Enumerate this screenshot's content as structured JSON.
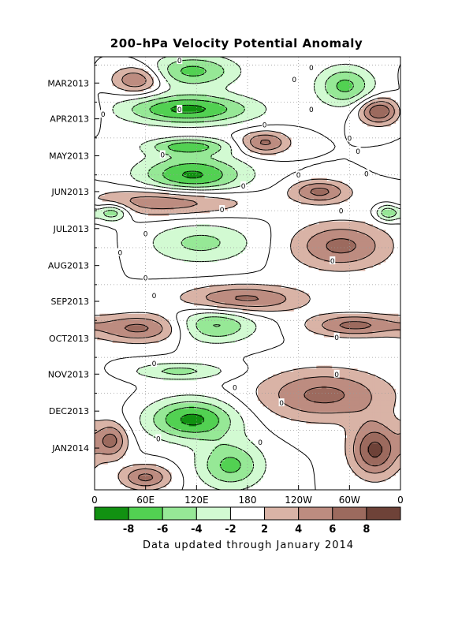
{
  "title": "200–hPa Velocity Potential Anomaly",
  "footer": "Data updated through January 2014",
  "chart_data": {
    "type": "heatmap",
    "title": "200–hPa Velocity Potential Anomaly",
    "x_ticks": [
      "0",
      "60E",
      "120E",
      "180",
      "120W",
      "60W",
      "0"
    ],
    "x_tick_lon": [
      0,
      60,
      120,
      180,
      240,
      300,
      360
    ],
    "y_ticks": [
      "MAR2013",
      "APR2013",
      "MAY2013",
      "JUN2013",
      "JUL2013",
      "AUG2013",
      "SEP2013",
      "OCT2013",
      "NOV2013",
      "DEC2013",
      "JAN2014"
    ],
    "y_range": [
      "2013-02-22",
      "2014-02-20"
    ],
    "x_range": [
      0,
      360
    ],
    "grid": true,
    "contour_labels_value": "0",
    "colorbar": {
      "labels": [
        "-8",
        "-6",
        "-4",
        "-2",
        "2",
        "4",
        "6",
        "8"
      ],
      "colors": [
        "#119111",
        "#52d152",
        "#96e896",
        "#d2fad2",
        "#ffffff",
        "#d9b3a6",
        "#bd8c80",
        "#9c6a5e",
        "#6e4238"
      ]
    },
    "regions": [
      {
        "sign": "negative",
        "lon": [
          30,
          190
        ],
        "date": [
          "2013-03-25",
          "2013-04-20"
        ],
        "min": -8
      },
      {
        "sign": "negative",
        "lon": [
          60,
          170
        ],
        "date": [
          "2013-02-20",
          "2013-03-20"
        ],
        "min": -6
      },
      {
        "sign": "negative",
        "lon": [
          60,
          160
        ],
        "date": [
          "2013-05-01",
          "2013-05-15"
        ],
        "min": -6
      },
      {
        "sign": "negative",
        "lon": [
          50,
          180
        ],
        "date": [
          "2013-05-15",
          "2013-06-20"
        ],
        "min": -8
      },
      {
        "sign": "negative",
        "lon": [
          0,
          40
        ],
        "date": [
          "2013-06-25",
          "2013-07-10"
        ],
        "min": -6
      },
      {
        "sign": "negative",
        "lon": [
          330,
          360
        ],
        "date": [
          "2013-06-25",
          "2013-07-10"
        ],
        "min": -6
      },
      {
        "sign": "negative",
        "lon": [
          60,
          190
        ],
        "date": [
          "2013-07-10",
          "2013-08-15"
        ],
        "min": -4
      },
      {
        "sign": "negative",
        "lon": [
          90,
          190
        ],
        "date": [
          "2013-09-20",
          "2013-10-20"
        ],
        "min": -6
      },
      {
        "sign": "negative",
        "lon": [
          40,
          160
        ],
        "date": [
          "2013-11-05",
          "2013-11-20"
        ],
        "min": -4
      },
      {
        "sign": "negative",
        "lon": [
          60,
          170
        ],
        "date": [
          "2013-12-05",
          "2014-01-10"
        ],
        "min": -8
      },
      {
        "sign": "negative",
        "lon": [
          120,
          200
        ],
        "date": [
          "2014-01-10",
          "2014-02-20"
        ],
        "min": -6
      },
      {
        "sign": "negative",
        "lon": [
          260,
          330
        ],
        "date": [
          "2013-03-01",
          "2013-04-05"
        ],
        "min": -6
      },
      {
        "sign": "positive",
        "lon": [
          20,
          80
        ],
        "date": [
          "2013-03-01",
          "2013-03-25"
        ],
        "max": 6
      },
      {
        "sign": "positive",
        "lon": [
          310,
          360
        ],
        "date": [
          "2013-03-28",
          "2013-04-20"
        ],
        "max": 8
      },
      {
        "sign": "positive",
        "lon": [
          170,
          230
        ],
        "date": [
          "2013-04-25",
          "2013-05-15"
        ],
        "max": 6
      },
      {
        "sign": "positive",
        "lon": [
          230,
          300
        ],
        "date": [
          "2013-06-05",
          "2013-06-25"
        ],
        "max": 6
      },
      {
        "sign": "positive",
        "lon": [
          0,
          180
        ],
        "date": [
          "2013-06-10",
          "2013-07-05"
        ],
        "max": 6
      },
      {
        "sign": "positive",
        "lon": [
          230,
          350
        ],
        "date": [
          "2013-07-10",
          "2013-08-20"
        ],
        "max": 6
      },
      {
        "sign": "positive",
        "lon": [
          100,
          250
        ],
        "date": [
          "2013-09-01",
          "2013-09-25"
        ],
        "max": 6
      },
      {
        "sign": "positive",
        "lon": [
          0,
          110
        ],
        "date": [
          "2013-09-25",
          "2013-10-20"
        ],
        "max": 6
      },
      {
        "sign": "positive",
        "lon": [
          250,
          360
        ],
        "date": [
          "2013-09-25",
          "2013-10-15"
        ],
        "max": 6
      },
      {
        "sign": "positive",
        "lon": [
          190,
          350
        ],
        "date": [
          "2013-11-10",
          "2013-12-25"
        ],
        "max": 6
      },
      {
        "sign": "positive",
        "lon": [
          300,
          360
        ],
        "date": [
          "2013-12-25",
          "2014-02-10"
        ],
        "max": 8
      },
      {
        "sign": "positive",
        "lon": [
          0,
          40
        ],
        "date": [
          "2013-12-25",
          "2014-01-25"
        ],
        "max": 6
      },
      {
        "sign": "positive",
        "lon": [
          30,
          90
        ],
        "date": [
          "2014-01-30",
          "2014-02-20"
        ],
        "max": 6
      }
    ]
  }
}
